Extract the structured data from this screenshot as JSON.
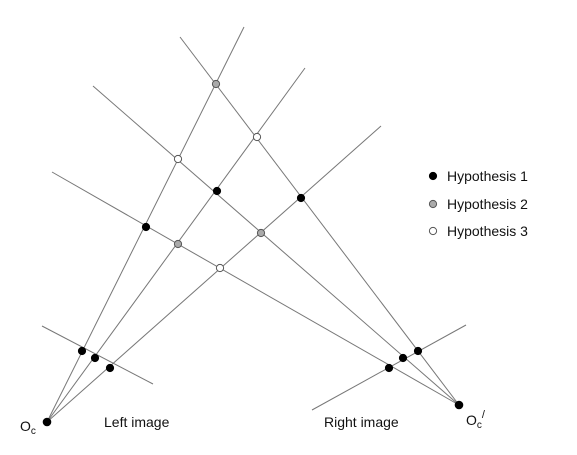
{
  "legend": [
    {
      "label": "Hypothesis 1",
      "color": "#000000"
    },
    {
      "label": "Hypothesis 2",
      "color": "#aaaaaa"
    },
    {
      "label": "Hypothesis 3",
      "color": "#ffffff"
    }
  ],
  "labels": {
    "left_image": "Left image",
    "right_image": "Right image",
    "left_origin": "O",
    "left_origin_sub": "c",
    "right_origin": "O",
    "right_origin_sub": "c",
    "right_origin_sup": "/"
  },
  "colors": {
    "line": "#777777",
    "hypothesis_1": "#000000",
    "hypothesis_2": "#aaaaaa",
    "hypothesis_3": "#ffffff"
  }
}
